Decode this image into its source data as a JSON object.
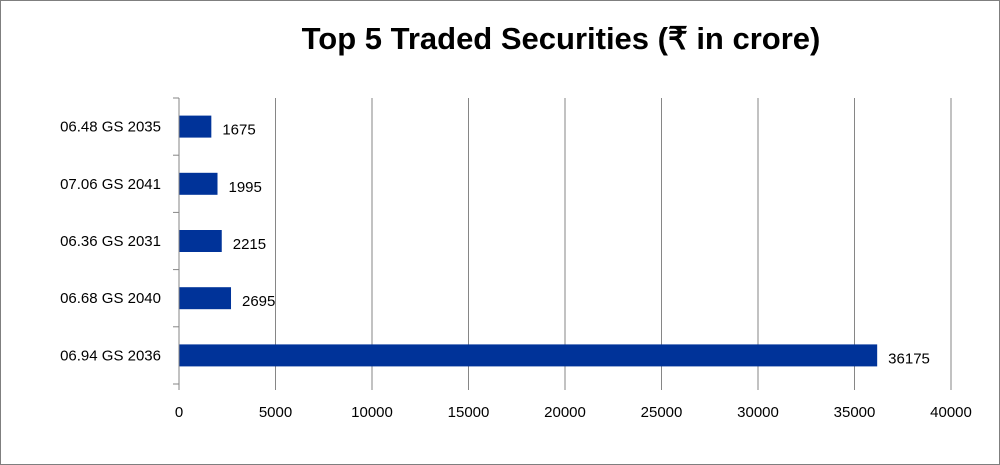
{
  "chart_data": {
    "type": "bar",
    "orientation": "horizontal",
    "title": "Top 5 Traded Securities (₹ in crore)",
    "categories": [
      "06.48 GS 2035",
      "07.06 GS 2041",
      "06.36 GS 2031",
      "06.68 GS 2040",
      "06.94 GS 2036"
    ],
    "values": [
      1675,
      1995,
      2215,
      2695,
      36175
    ],
    "xlim": [
      0,
      40000
    ],
    "x_ticks": [
      0,
      5000,
      10000,
      15000,
      20000,
      25000,
      30000,
      35000,
      40000
    ],
    "x_tick_labels": [
      "0",
      "5000",
      "10000",
      "15000",
      "20000",
      "25000",
      "30000",
      "35000",
      "40000"
    ],
    "data_labels": [
      "1675",
      "1995",
      "2215",
      "2695",
      "36175"
    ],
    "grid": "vertical",
    "legend": "none",
    "bar_color": "#003399"
  }
}
